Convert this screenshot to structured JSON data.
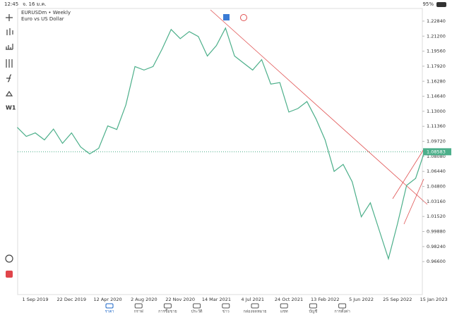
{
  "status_bar": {
    "time": "12:45",
    "date": "จ. 16 ม.ค.",
    "battery": "95%"
  },
  "toolbar": {
    "timeframe": "W1"
  },
  "chart_data": {
    "type": "line",
    "title": "EURUSDm • Weekly",
    "subtitle": "Euro vs US Dollar",
    "categories": [
      null,
      null,
      "1 Sep 2019",
      null,
      null,
      null,
      "22 Dec 2019",
      null,
      null,
      null,
      "12 Apr 2020",
      null,
      null,
      null,
      "2 Aug 2020",
      null,
      null,
      null,
      "22 Nov 2020",
      null,
      null,
      null,
      "14 Mar 2021",
      null,
      null,
      null,
      "4 Jul 2021",
      null,
      null,
      null,
      "24 Oct 2021",
      null,
      null,
      null,
      "13 Feb 2022",
      null,
      null,
      null,
      "5 Jun 2022",
      null,
      null,
      null,
      "25 Sep 2022",
      null,
      null,
      null,
      "15 Jan 2023"
    ],
    "values": [
      1.1125,
      1.1026,
      1.1064,
      1.0988,
      1.1106,
      1.095,
      1.1064,
      1.0911,
      1.0835,
      1.0896,
      1.114,
      1.1102,
      1.1369,
      1.1788,
      1.175,
      1.1788,
      1.1979,
      1.2193,
      1.2093,
      1.217,
      1.2116,
      1.1903,
      1.2017,
      1.2208,
      1.1903,
      1.1826,
      1.175,
      1.1864,
      1.1597,
      1.1613,
      1.1292,
      1.133,
      1.1406,
      1.1216,
      1.0988,
      1.0644,
      1.072,
      1.053,
      1.0148,
      1.0301,
      0.9996,
      0.9691,
      1.0072,
      1.0491,
      1.0568,
      1.0865,
      null
    ],
    "color": "#4caf8a",
    "ylim": [
      0.93,
      1.2422
    ],
    "yticks": [
      {
        "value": 1.2284,
        "label": "1.22840"
      },
      {
        "value": 1.212,
        "label": "1.21200"
      },
      {
        "value": 1.1956,
        "label": "1.19560"
      },
      {
        "value": 1.1792,
        "label": "1.17920"
      },
      {
        "value": 1.1628,
        "label": "1.16280"
      },
      {
        "value": 1.1464,
        "label": "1.14640"
      },
      {
        "value": 1.13,
        "label": "1.13000"
      },
      {
        "value": 1.1136,
        "label": "1.11360"
      },
      {
        "value": 1.0972,
        "label": "1.09720"
      },
      {
        "value": 1.0808,
        "label": "1.08080"
      },
      {
        "value": 1.0644,
        "label": "1.06440"
      },
      {
        "value": 1.048,
        "label": "1.04800"
      },
      {
        "value": 1.0316,
        "label": "1.03160"
      },
      {
        "value": 1.0152,
        "label": "1.01520"
      },
      {
        "value": 0.9988,
        "label": "0.99880"
      },
      {
        "value": 0.9824,
        "label": "0.98240"
      },
      {
        "value": 0.966,
        "label": "0.96600"
      }
    ],
    "current_price": 1.08583
  },
  "tabs": [
    "ราคา",
    "กราฟ",
    "การซื้อขาย",
    "ประวัติ",
    "ข่าว",
    "กล่องจดหมาย",
    "แชท",
    "บัญชี",
    "การตั้งค่า"
  ]
}
